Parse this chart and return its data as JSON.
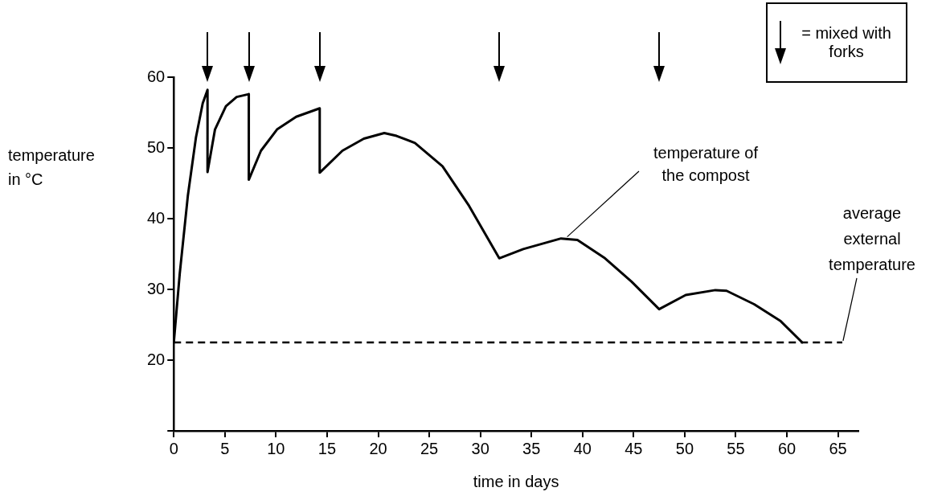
{
  "chart_data": {
    "type": "line",
    "xlabel": "time in days",
    "ylabel": "temperature in °C",
    "xlim": [
      0,
      67
    ],
    "ylim": [
      10,
      60
    ],
    "xticks": [
      0,
      5,
      10,
      15,
      20,
      25,
      30,
      35,
      40,
      45,
      50,
      55,
      60,
      65
    ],
    "yticks": [
      {
        "value": 10,
        "label": null
      },
      20,
      30,
      40,
      50,
      60
    ],
    "grid": false,
    "legend": false,
    "marker": "none",
    "line_style": "solid",
    "series": [
      {
        "color": "#000000",
        "x": [
          0,
          0.58,
          1.38,
          2.17,
          2.83,
          3.3,
          3.3,
          4.03,
          5.1,
          6.15,
          7.34,
          7.34,
          8.53,
          10.1,
          11.98,
          14.28,
          14.28,
          16.5,
          18.6,
          20.6,
          21.8,
          23.6,
          26.3,
          28.9,
          31.85,
          34.2,
          37.9,
          39.5,
          42.2,
          44.8,
          47.5,
          50.1,
          53.0,
          54.1,
          56.8,
          59.4,
          61.5
        ],
        "values": [
          22.5,
          32.2,
          43.3,
          51.5,
          56.3,
          58.2,
          46.6,
          52.6,
          55.9,
          57.2,
          57.6,
          45.5,
          49.6,
          52.6,
          54.4,
          55.6,
          46.5,
          49.6,
          51.3,
          52.1,
          51.7,
          50.7,
          47.4,
          41.8,
          34.4,
          35.7,
          37.2,
          37.0,
          34.4,
          31.1,
          27.2,
          29.2,
          29.9,
          29.8,
          27.9,
          25.5,
          22.5
        ]
      }
    ],
    "ref_lines": [
      {
        "axis": "y",
        "value": 22.5,
        "color": "#000000",
        "line_style": "dashed"
      }
    ],
    "annotations": [
      "= mixed with forks",
      {
        "text": "temperature of the compost",
        "x": 38.5,
        "y": 37.2
      },
      {
        "text": "average external temperature",
        "x": 65.5,
        "y": 22.5
      }
    ]
  }
}
